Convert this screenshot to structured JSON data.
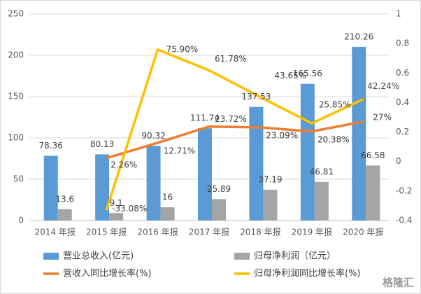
{
  "chart_data": {
    "type": "bar",
    "categories": [
      "2014 年报",
      "2015 年报",
      "2016 年报",
      "2017 年报",
      "2018 年报",
      "2019 年报",
      "2020 年报"
    ],
    "series": [
      {
        "name": "营业总收入(亿元)",
        "type": "bar",
        "color": "#5b9bd5",
        "axis": "y",
        "values": [
          78.36,
          80.13,
          90.32,
          111.74,
          137.53,
          165.56,
          210.26
        ]
      },
      {
        "name": "归母净利润（亿元）",
        "type": "bar",
        "color": "#a5a5a5",
        "axis": "y",
        "values": [
          13.6,
          9.1,
          16,
          25.89,
          37.19,
          46.81,
          66.58
        ]
      },
      {
        "name": "营收入同比增长率(%)",
        "type": "line",
        "color": "#ed7d31",
        "axis": "y2",
        "values": [
          null,
          0.0226,
          0.1271,
          0.2372,
          0.2309,
          0.2038,
          0.27
        ],
        "value_labels": [
          null,
          "2.26%",
          "12.71%",
          "23.72%",
          "23.09%",
          "20.38%",
          "27%"
        ]
      },
      {
        "name": "归母净利润同比增长率(%)",
        "type": "line",
        "color": "#ffc000",
        "axis": "y2",
        "values": [
          null,
          -0.3308,
          0.759,
          0.6178,
          0.4365,
          0.2585,
          0.4224
        ],
        "value_labels": [
          null,
          "-33.08%",
          "75.90%",
          "61.78%",
          "43.65%",
          "25.85%",
          "42.24%"
        ]
      }
    ],
    "ylim": [
      0,
      250
    ],
    "yticks": [
      0,
      50,
      100,
      150,
      200,
      250
    ],
    "y2lim": [
      -0.4,
      1
    ],
    "y2ticks": [
      -0.4,
      -0.2,
      0,
      0.2,
      0.4,
      0.6,
      0.8,
      1
    ],
    "grid": true,
    "legend": "bottom",
    "watermark": "格隆汇"
  }
}
